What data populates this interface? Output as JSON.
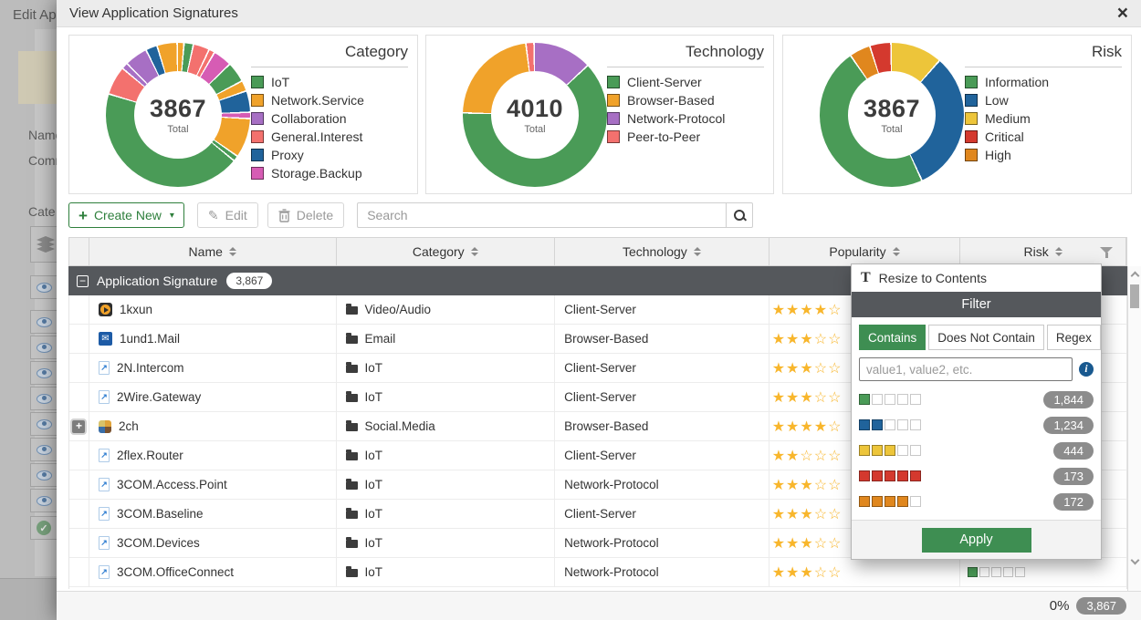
{
  "colors": {
    "green": "#4a9b57",
    "orange": "#f0a22a",
    "purple": "#a76fc4",
    "salmon": "#f3716e",
    "blue": "#20639b",
    "magenta": "#d65cb4",
    "yellow": "#edc53a",
    "red": "#d4392e",
    "dark_orange": "#e0871e",
    "accent_green": "#3e8e52",
    "star_gold": "#f8b62c",
    "dark_bar": "#55585c"
  },
  "background": {
    "page_title": "Edit Ap",
    "label_name": "Name",
    "label_comments": "Comm",
    "label_categories": "Cate",
    "row_buttons": [
      "eye",
      "eye",
      "eye",
      "eye",
      "eye",
      "eye",
      "eye",
      "eye",
      "eye",
      "check"
    ]
  },
  "modal": {
    "title": "View Application Signatures",
    "close_label": "×"
  },
  "charts": [
    {
      "title": "Category",
      "total": "3867",
      "total_label": "Total",
      "legend": [
        {
          "label": "IoT",
          "color": "#4a9b57"
        },
        {
          "label": "Network.Service",
          "color": "#f0a22a"
        },
        {
          "label": "Collaboration",
          "color": "#a76fc4"
        },
        {
          "label": "General.Interest",
          "color": "#f3716e"
        },
        {
          "label": "Proxy",
          "color": "#20639b"
        },
        {
          "label": "Storage.Backup",
          "color": "#d65cb4"
        }
      ],
      "segments": [
        {
          "color": "#f0a22a",
          "value": 1.2
        },
        {
          "color": "#4a9b57",
          "value": 1.8
        },
        {
          "color": "#f3716e",
          "value": 3.4
        },
        {
          "color": "#f3716e",
          "value": 1.0
        },
        {
          "color": "#d65cb4",
          "value": 4.0
        },
        {
          "color": "#4a9b57",
          "value": 4.4
        },
        {
          "color": "#f0a22a",
          "value": 2.1
        },
        {
          "color": "#20639b",
          "value": 4.6
        },
        {
          "color": "#d65cb4",
          "value": 1.1
        },
        {
          "color": "#f0a22a",
          "value": 8.8
        },
        {
          "color": "#4a9b57",
          "value": 0.9
        },
        {
          "color": "#4a9b57",
          "value": 45.0
        },
        {
          "color": "#f3716e",
          "value": 6.3
        },
        {
          "color": "#a76fc4",
          "value": 1.1
        },
        {
          "color": "#a76fc4",
          "value": 5.0
        },
        {
          "color": "#20639b",
          "value": 2.3
        },
        {
          "color": "#f0a22a",
          "value": 4.3
        }
      ]
    },
    {
      "title": "Technology",
      "total": "4010",
      "total_label": "Total",
      "legend": [
        {
          "label": "Client-Server",
          "color": "#4a9b57"
        },
        {
          "label": "Browser-Based",
          "color": "#f0a22a"
        },
        {
          "label": "Network-Protocol",
          "color": "#a76fc4"
        },
        {
          "label": "Peer-to-Peer",
          "color": "#f3716e"
        }
      ],
      "segments": [
        {
          "name": "Network-Protocol",
          "color": "#a76fc4",
          "value": 522
        },
        {
          "name": "Client-Server",
          "color": "#4a9b57",
          "value": 2526
        },
        {
          "name": "Browser-Based",
          "color": "#f0a22a",
          "value": 902
        },
        {
          "name": "Peer-to-Peer",
          "color": "#f3716e",
          "value": 60
        }
      ]
    },
    {
      "title": "Risk",
      "total": "3867",
      "total_label": "Total",
      "legend": [
        {
          "label": "Information",
          "color": "#4a9b57"
        },
        {
          "label": "Low",
          "color": "#20639b"
        },
        {
          "label": "Medium",
          "color": "#edc53a"
        },
        {
          "label": "Critical",
          "color": "#d4392e"
        },
        {
          "label": "High",
          "color": "#e0871e"
        }
      ],
      "segments": [
        {
          "name": "Medium",
          "color": "#edc53a",
          "value": 444
        },
        {
          "name": "Low",
          "color": "#20639b",
          "value": 1234
        },
        {
          "name": "Information",
          "color": "#4a9b57",
          "value": 1844
        },
        {
          "name": "High",
          "color": "#e0871e",
          "value": 172
        },
        {
          "name": "Critical",
          "color": "#d4392e",
          "value": 173
        }
      ]
    }
  ],
  "toolbar": {
    "create_new_label": "Create New",
    "edit_label": "Edit",
    "delete_label": "Delete",
    "search_placeholder": "Search"
  },
  "table": {
    "columns": [
      {
        "label": "",
        "sortable": false
      },
      {
        "label": "Name",
        "sortable": true
      },
      {
        "label": "Category",
        "sortable": true
      },
      {
        "label": "Technology",
        "sortable": true
      },
      {
        "label": "Popularity",
        "sortable": true
      },
      {
        "label": "Risk",
        "sortable": true
      }
    ],
    "group": {
      "label": "Application Signature",
      "count": "3,867"
    },
    "rows": [
      {
        "icon": "play",
        "name": "1kxun",
        "category": "Video/Audio",
        "technology": "Client-Server",
        "popularity": 4,
        "expandable": false,
        "risk_level": null,
        "risk_color": null
      },
      {
        "icon": "mail",
        "name": "1und1.Mail",
        "category": "Email",
        "technology": "Browser-Based",
        "popularity": 3,
        "expandable": false,
        "risk_level": null,
        "risk_color": null
      },
      {
        "icon": "doc",
        "name": "2N.Intercom",
        "category": "IoT",
        "technology": "Client-Server",
        "popularity": 3,
        "expandable": false,
        "risk_level": null,
        "risk_color": null
      },
      {
        "icon": "doc",
        "name": "2Wire.Gateway",
        "category": "IoT",
        "technology": "Client-Server",
        "popularity": 3,
        "expandable": false,
        "risk_level": null,
        "risk_color": null
      },
      {
        "icon": "sprite",
        "name": "2ch",
        "category": "Social.Media",
        "technology": "Browser-Based",
        "popularity": 4,
        "expandable": true,
        "risk_level": null,
        "risk_color": null
      },
      {
        "icon": "doc",
        "name": "2flex.Router",
        "category": "IoT",
        "technology": "Client-Server",
        "popularity": 2,
        "expandable": false,
        "risk_level": null,
        "risk_color": null
      },
      {
        "icon": "doc",
        "name": "3COM.Access.Point",
        "category": "IoT",
        "technology": "Network-Protocol",
        "popularity": 3,
        "expandable": false,
        "risk_level": null,
        "risk_color": null
      },
      {
        "icon": "doc",
        "name": "3COM.Baseline",
        "category": "IoT",
        "technology": "Client-Server",
        "popularity": 3,
        "expandable": false,
        "risk_level": null,
        "risk_color": null
      },
      {
        "icon": "doc",
        "name": "3COM.Devices",
        "category": "IoT",
        "technology": "Network-Protocol",
        "popularity": 3,
        "expandable": false,
        "risk_level": null,
        "risk_color": null
      },
      {
        "icon": "doc",
        "name": "3COM.OfficeConnect",
        "category": "IoT",
        "technology": "Network-Protocol",
        "popularity": 3,
        "expandable": false,
        "risk_level": 1,
        "risk_color": "#4a9b57"
      }
    ]
  },
  "popup": {
    "resize_item_label": "Resize to Contents",
    "filter_title": "Filter",
    "modes": [
      "Contains",
      "Does Not Contain",
      "Regex"
    ],
    "active_mode": "Contains",
    "input_placeholder": "value1, value2, etc.",
    "options": [
      {
        "level": 1,
        "color": "#4a9b57",
        "count": "1,844"
      },
      {
        "level": 2,
        "color": "#20639b",
        "count": "1,234"
      },
      {
        "level": 3,
        "color": "#edc53a",
        "count": "444"
      },
      {
        "level": 5,
        "color": "#d4392e",
        "count": "173"
      },
      {
        "level": 4,
        "color": "#e0871e",
        "count": "172"
      }
    ],
    "apply_label": "Apply"
  },
  "statusbar": {
    "percent": "0%",
    "count": "3,867"
  }
}
